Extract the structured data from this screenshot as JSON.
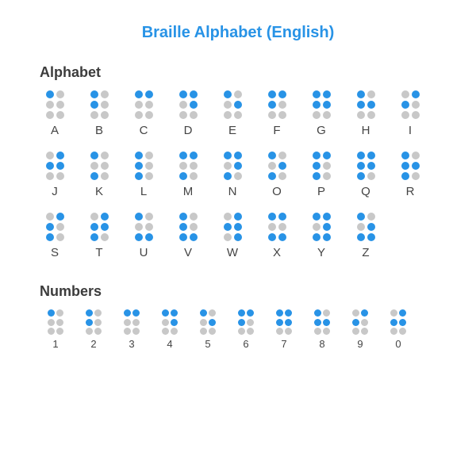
{
  "title": "Braille Alphabet (English)",
  "title_color": "#2893e6",
  "section_alphabet": "Alphabet",
  "section_numbers": "Numbers",
  "header_color": "#3c3c3c",
  "label_color": "#444444",
  "dot_on_color": "#2893e6",
  "dot_off_color": "#c8c8c8",
  "background_color": "#ffffff",
  "alphabet": [
    {
      "label": "A",
      "dots": [
        1,
        0,
        0,
        0,
        0,
        0
      ]
    },
    {
      "label": "B",
      "dots": [
        1,
        0,
        1,
        0,
        0,
        0
      ]
    },
    {
      "label": "C",
      "dots": [
        1,
        1,
        0,
        0,
        0,
        0
      ]
    },
    {
      "label": "D",
      "dots": [
        1,
        1,
        0,
        1,
        0,
        0
      ]
    },
    {
      "label": "E",
      "dots": [
        1,
        0,
        0,
        1,
        0,
        0
      ]
    },
    {
      "label": "F",
      "dots": [
        1,
        1,
        1,
        0,
        0,
        0
      ]
    },
    {
      "label": "G",
      "dots": [
        1,
        1,
        1,
        1,
        0,
        0
      ]
    },
    {
      "label": "H",
      "dots": [
        1,
        0,
        1,
        1,
        0,
        0
      ]
    },
    {
      "label": "I",
      "dots": [
        0,
        1,
        1,
        0,
        0,
        0
      ]
    },
    {
      "label": "J",
      "dots": [
        0,
        1,
        1,
        1,
        0,
        0
      ]
    },
    {
      "label": "K",
      "dots": [
        1,
        0,
        0,
        0,
        1,
        0
      ]
    },
    {
      "label": "L",
      "dots": [
        1,
        0,
        1,
        0,
        1,
        0
      ]
    },
    {
      "label": "M",
      "dots": [
        1,
        1,
        0,
        0,
        1,
        0
      ]
    },
    {
      "label": "N",
      "dots": [
        1,
        1,
        0,
        1,
        1,
        0
      ]
    },
    {
      "label": "O",
      "dots": [
        1,
        0,
        0,
        1,
        1,
        0
      ]
    },
    {
      "label": "P",
      "dots": [
        1,
        1,
        1,
        0,
        1,
        0
      ]
    },
    {
      "label": "Q",
      "dots": [
        1,
        1,
        1,
        1,
        1,
        0
      ]
    },
    {
      "label": "R",
      "dots": [
        1,
        0,
        1,
        1,
        1,
        0
      ]
    },
    {
      "label": "S",
      "dots": [
        0,
        1,
        1,
        0,
        1,
        0
      ]
    },
    {
      "label": "T",
      "dots": [
        0,
        1,
        1,
        1,
        1,
        0
      ]
    },
    {
      "label": "U",
      "dots": [
        1,
        0,
        0,
        0,
        1,
        1
      ]
    },
    {
      "label": "V",
      "dots": [
        1,
        0,
        1,
        0,
        1,
        1
      ]
    },
    {
      "label": "W",
      "dots": [
        0,
        1,
        1,
        1,
        0,
        1
      ]
    },
    {
      "label": "X",
      "dots": [
        1,
        1,
        0,
        0,
        1,
        1
      ]
    },
    {
      "label": "Y",
      "dots": [
        1,
        1,
        0,
        1,
        1,
        1
      ]
    },
    {
      "label": "Z",
      "dots": [
        1,
        0,
        0,
        1,
        1,
        1
      ]
    }
  ],
  "numbers": [
    {
      "label": "1",
      "dots": [
        1,
        0,
        0,
        0,
        0,
        0
      ]
    },
    {
      "label": "2",
      "dots": [
        1,
        0,
        1,
        0,
        0,
        0
      ]
    },
    {
      "label": "3",
      "dots": [
        1,
        1,
        0,
        0,
        0,
        0
      ]
    },
    {
      "label": "4",
      "dots": [
        1,
        1,
        0,
        1,
        0,
        0
      ]
    },
    {
      "label": "5",
      "dots": [
        1,
        0,
        0,
        1,
        0,
        0
      ]
    },
    {
      "label": "6",
      "dots": [
        1,
        1,
        1,
        0,
        0,
        0
      ]
    },
    {
      "label": "7",
      "dots": [
        1,
        1,
        1,
        1,
        0,
        0
      ]
    },
    {
      "label": "8",
      "dots": [
        1,
        0,
        1,
        1,
        0,
        0
      ]
    },
    {
      "label": "9",
      "dots": [
        0,
        1,
        1,
        0,
        0,
        0
      ]
    },
    {
      "label": "0",
      "dots": [
        0,
        1,
        1,
        1,
        0,
        0
      ]
    }
  ]
}
